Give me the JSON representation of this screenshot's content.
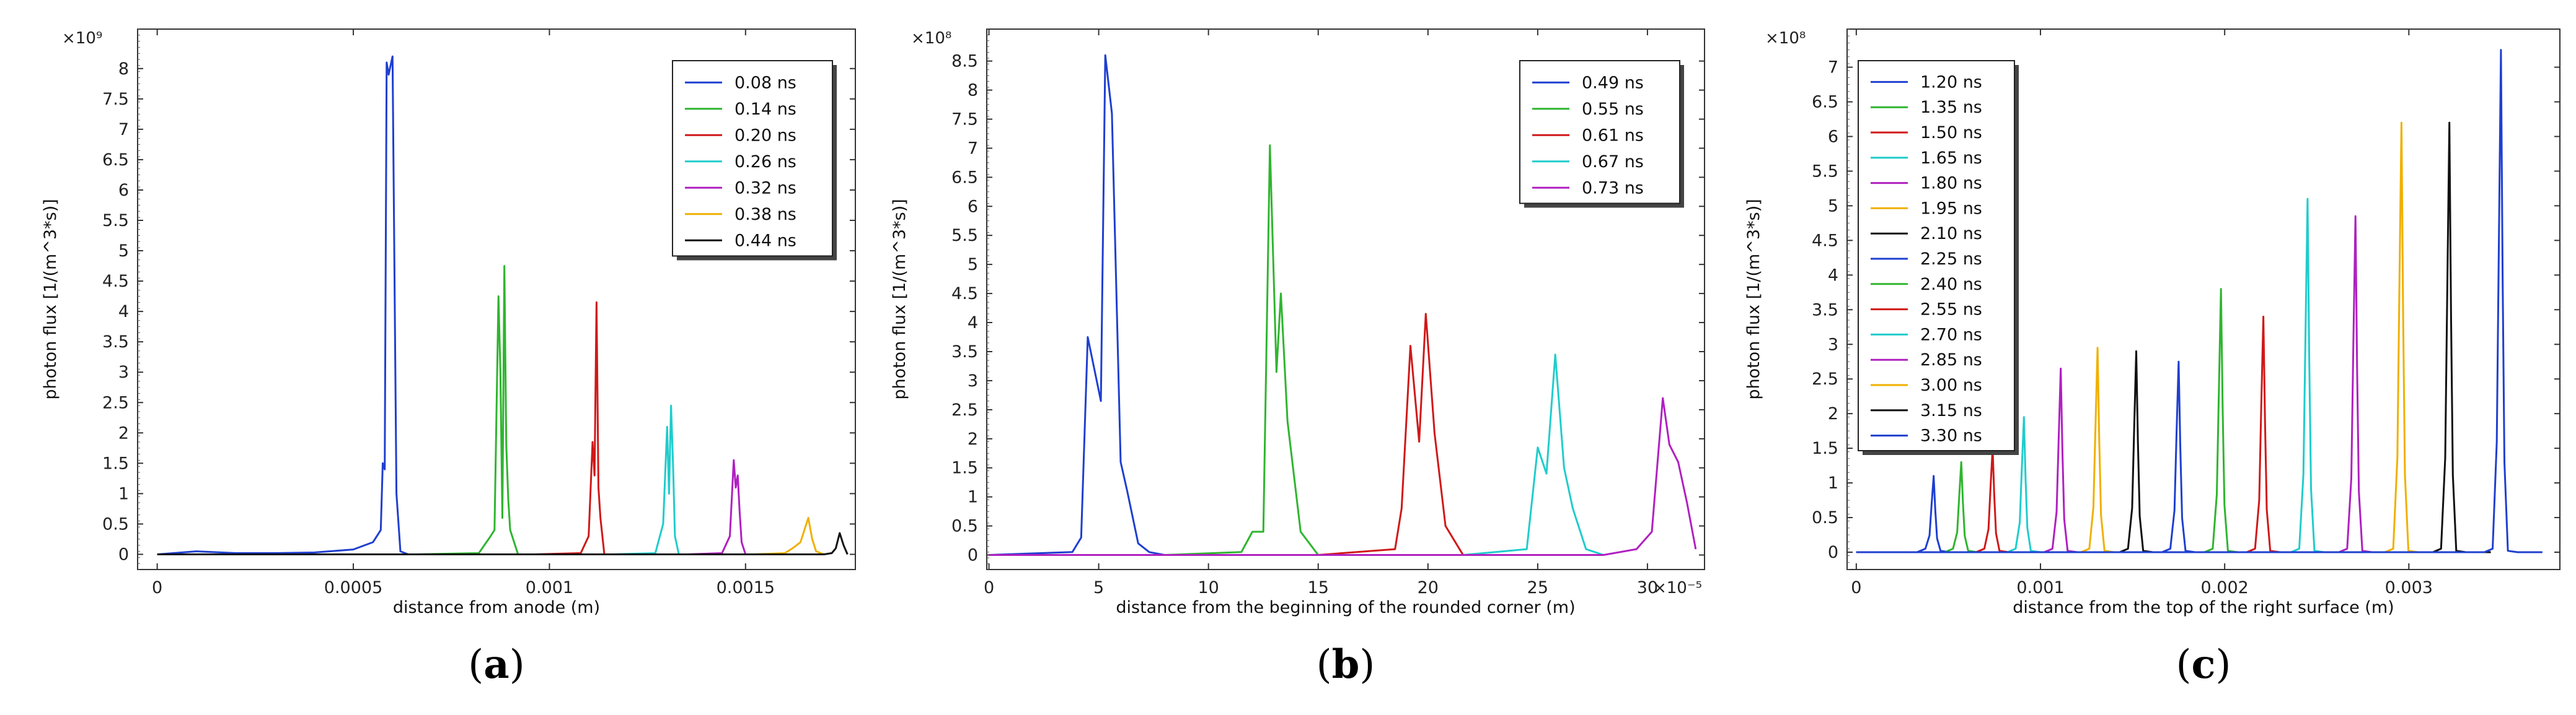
{
  "chart_data": [
    {
      "type": "line",
      "panel_label": "a",
      "xlabel": "distance from anode (m)",
      "ylabel": "photon flux [1/(m^3*s)]",
      "y_multiplier": "×10⁹",
      "xlim": [
        -5e-05,
        0.00178
      ],
      "ylim": [
        -0.25,
        8.65
      ],
      "x_ticks": [
        0,
        0.0005,
        0.001,
        0.0015
      ],
      "x_tick_labels": [
        "0",
        "0.0005",
        "0.001",
        "0.0015"
      ],
      "y_ticks": [
        0,
        0.5,
        1,
        1.5,
        2,
        2.5,
        3,
        3.5,
        4,
        4.5,
        5,
        5.5,
        6,
        6.5,
        7,
        7.5,
        8
      ],
      "y_tick_labels": [
        "0",
        "0.5",
        "1",
        "1.5",
        "2",
        "2.5",
        "3",
        "3.5",
        "4",
        "4.5",
        "5",
        "5.5",
        "6",
        "6.5",
        "7",
        "7.5",
        "8"
      ],
      "legend_position": "top-right",
      "series": [
        {
          "name": "0.08 ns",
          "color": "#1f3fd0",
          "x": [
            0,
            0.0001,
            0.0002,
            0.0003,
            0.0004,
            0.0005,
            0.00055,
            0.00057,
            0.000575,
            0.00058,
            0.000585,
            0.00059,
            0.0006,
            0.00061,
            0.00062,
            0.00064,
            0.00066
          ],
          "y": [
            0,
            0.05,
            0.02,
            0.02,
            0.03,
            0.08,
            0.2,
            0.4,
            1.5,
            1.4,
            8.1,
            7.9,
            8.2,
            1.0,
            0.05,
            0,
            0
          ]
        },
        {
          "name": "0.14 ns",
          "color": "#2fb52f",
          "x": [
            0.00066,
            0.00082,
            0.00085,
            0.00086,
            0.00087,
            0.000875,
            0.00088,
            0.000885,
            0.00089,
            0.000895,
            0.0009,
            0.00092,
            0.00096
          ],
          "y": [
            0,
            0.02,
            0.3,
            0.4,
            4.25,
            3.0,
            0.6,
            4.75,
            1.8,
            0.9,
            0.4,
            0,
            0
          ]
        },
        {
          "name": "0.20 ns",
          "color": "#d01818",
          "x": [
            0.00096,
            0.00108,
            0.0011,
            0.00111,
            0.001115,
            0.00112,
            0.001125,
            0.00113,
            0.00114,
            0.00116
          ],
          "y": [
            0,
            0.02,
            0.3,
            1.85,
            1.3,
            4.15,
            1.1,
            0.6,
            0,
            0
          ]
        },
        {
          "name": "0.26 ns",
          "color": "#20cccc",
          "x": [
            0.00116,
            0.00127,
            0.00129,
            0.0013,
            0.001305,
            0.00131,
            0.001315,
            0.00132,
            0.00133,
            0.00135
          ],
          "y": [
            0,
            0.02,
            0.5,
            2.1,
            1.0,
            2.45,
            1.5,
            0.3,
            0,
            0
          ]
        },
        {
          "name": "0.32 ns",
          "color": "#b020c0",
          "x": [
            0.00135,
            0.00144,
            0.00146,
            0.00147,
            0.001475,
            0.00148,
            0.001485,
            0.00149,
            0.0015,
            0.00152
          ],
          "y": [
            0,
            0.02,
            0.3,
            1.55,
            1.1,
            1.3,
            0.7,
            0.2,
            0,
            0
          ]
        },
        {
          "name": "0.38 ns",
          "color": "#f0b000",
          "x": [
            0.00152,
            0.0016,
            0.00162,
            0.00164,
            0.00166,
            0.00167,
            0.00168,
            0.0017
          ],
          "y": [
            0,
            0.02,
            0.1,
            0.2,
            0.6,
            0.25,
            0.05,
            0
          ]
        },
        {
          "name": "0.44 ns",
          "color": "#111111",
          "x": [
            0,
            0.0005,
            0.0017,
            0.00172,
            0.00173,
            0.00174,
            0.00175,
            0.00176
          ],
          "y": [
            0,
            0,
            0,
            0.02,
            0.1,
            0.35,
            0.15,
            0
          ]
        }
      ]
    },
    {
      "type": "line",
      "panel_label": "b",
      "xlabel": "distance from the beginning of the rounded corner (m)",
      "ylabel": "photon flux [1/(m^3*s)]",
      "y_multiplier": "×10⁸",
      "x_multiplier": "×10⁻⁵",
      "xlim": [
        -0.1,
        32.6
      ],
      "ylim": [
        -0.25,
        9.05
      ],
      "x_ticks": [
        0,
        5,
        10,
        15,
        20,
        25,
        30
      ],
      "x_tick_labels": [
        "0",
        "5",
        "10",
        "15",
        "20",
        "25",
        "30"
      ],
      "y_ticks": [
        0,
        0.5,
        1,
        1.5,
        2,
        2.5,
        3,
        3.5,
        4,
        4.5,
        5,
        5.5,
        6,
        6.5,
        7,
        7.5,
        8,
        8.5
      ],
      "y_tick_labels": [
        "0",
        "0.5",
        "1",
        "1.5",
        "2",
        "2.5",
        "3",
        "3.5",
        "4",
        "4.5",
        "5",
        "5.5",
        "6",
        "6.5",
        "7",
        "7.5",
        "8",
        "8.5"
      ],
      "legend_position": "top-right",
      "series": [
        {
          "name": "0.49 ns",
          "color": "#1f3fd0",
          "x": [
            0,
            3.8,
            4.2,
            4.5,
            4.8,
            5.1,
            5.3,
            5.6,
            6.0,
            6.3,
            6.8,
            7.3,
            8.0
          ],
          "y": [
            0,
            0.05,
            0.3,
            3.75,
            3.2,
            2.65,
            8.6,
            7.6,
            1.6,
            1.1,
            0.2,
            0.05,
            0
          ]
        },
        {
          "name": "0.55 ns",
          "color": "#2fb52f",
          "x": [
            8.0,
            11.5,
            12.0,
            12.5,
            12.8,
            13.1,
            13.3,
            13.6,
            14.2,
            15.0
          ],
          "y": [
            0,
            0.05,
            0.4,
            0.4,
            7.05,
            3.15,
            4.5,
            2.3,
            0.4,
            0
          ]
        },
        {
          "name": "0.61 ns",
          "color": "#d01818",
          "x": [
            15.0,
            18.5,
            18.8,
            19.2,
            19.6,
            19.9,
            20.3,
            20.8,
            21.6
          ],
          "y": [
            0,
            0.1,
            0.8,
            3.6,
            1.95,
            4.15,
            2.1,
            0.5,
            0
          ]
        },
        {
          "name": "0.67 ns",
          "color": "#20cccc",
          "x": [
            21.6,
            24.5,
            25.0,
            25.4,
            25.8,
            26.2,
            26.6,
            27.2,
            28.0
          ],
          "y": [
            0,
            0.1,
            1.85,
            1.4,
            3.45,
            1.5,
            0.8,
            0.1,
            0
          ]
        },
        {
          "name": "0.73 ns",
          "color": "#b020c0",
          "x": [
            0,
            28.0,
            29.5,
            30.2,
            30.7,
            31.0,
            31.4,
            31.8,
            32.2
          ],
          "y": [
            0,
            0,
            0.1,
            0.4,
            2.7,
            1.9,
            1.6,
            0.9,
            0.1
          ]
        }
      ]
    },
    {
      "type": "line",
      "panel_label": "c",
      "xlabel": "distance from the top of the right surface (m)",
      "ylabel": "photon flux [1/(m^3*s)]",
      "y_multiplier": "×10⁸",
      "xlim": [
        -5e-05,
        0.00382
      ],
      "ylim": [
        -0.25,
        7.55
      ],
      "x_ticks": [
        0,
        0.001,
        0.002,
        0.003
      ],
      "x_tick_labels": [
        "0",
        "0.001",
        "0.002",
        "0.003"
      ],
      "y_ticks": [
        0,
        0.5,
        1,
        1.5,
        2,
        2.5,
        3,
        3.5,
        4,
        4.5,
        5,
        5.5,
        6,
        6.5,
        7
      ],
      "y_tick_labels": [
        "0",
        "0.5",
        "1",
        "1.5",
        "2",
        "2.5",
        "3",
        "3.5",
        "4",
        "4.5",
        "5",
        "5.5",
        "6",
        "6.5",
        "7"
      ],
      "legend_position": "top-left",
      "series": [
        {
          "name": "1.20 ns",
          "color": "#1f3fd0",
          "peak_x": 0.00042,
          "peak_y": 1.1
        },
        {
          "name": "1.35 ns",
          "color": "#2fb52f",
          "peak_x": 0.00057,
          "peak_y": 1.3
        },
        {
          "name": "1.50 ns",
          "color": "#d01818",
          "peak_x": 0.00074,
          "peak_y": 1.5
        },
        {
          "name": "1.65 ns",
          "color": "#20cccc",
          "peak_x": 0.00091,
          "peak_y": 1.95
        },
        {
          "name": "1.80 ns",
          "color": "#b020c0",
          "peak_x": 0.00111,
          "peak_y": 2.65
        },
        {
          "name": "1.95 ns",
          "color": "#f0b000",
          "peak_x": 0.00131,
          "peak_y": 2.95
        },
        {
          "name": "2.10 ns",
          "color": "#111111",
          "peak_x": 0.00152,
          "peak_y": 2.9
        },
        {
          "name": "2.25 ns",
          "color": "#1f3fd0",
          "peak_x": 0.00175,
          "peak_y": 2.75
        },
        {
          "name": "2.40 ns",
          "color": "#2fb52f",
          "peak_x": 0.00198,
          "peak_y": 3.8
        },
        {
          "name": "2.55 ns",
          "color": "#d01818",
          "peak_x": 0.00221,
          "peak_y": 3.4
        },
        {
          "name": "2.70 ns",
          "color": "#20cccc",
          "peak_x": 0.00245,
          "peak_y": 5.1
        },
        {
          "name": "2.85 ns",
          "color": "#b020c0",
          "peak_x": 0.00271,
          "peak_y": 4.85
        },
        {
          "name": "3.00 ns",
          "color": "#f0b000",
          "peak_x": 0.00296,
          "peak_y": 6.2
        },
        {
          "name": "3.15 ns",
          "color": "#111111",
          "peak_x": 0.00322,
          "peak_y": 6.2
        },
        {
          "name": "3.30 ns",
          "color": "#1f3fd0",
          "peak_x": 0.0035,
          "peak_y": 7.25
        }
      ]
    }
  ]
}
